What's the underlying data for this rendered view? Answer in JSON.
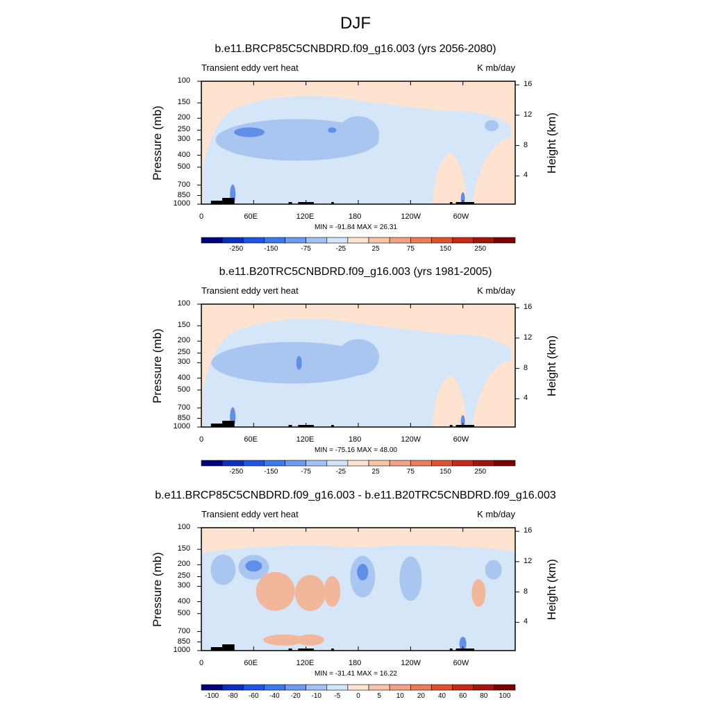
{
  "page_title": "DJF",
  "chart_data": [
    {
      "type": "heatmap",
      "title": "b.e11.BRCP85C5CNBDRD.f09_g16.003 (yrs 2056-2080)",
      "left_string": "Transient eddy vert heat",
      "right_string": "K mb/day",
      "ylabel": "Pressure (mb)",
      "ylabel_right": "Height (km)",
      "x_ticks": [
        "0",
        "60E",
        "120E",
        "180",
        "120W",
        "60W"
      ],
      "y_ticks": [
        "100",
        "150",
        "200",
        "250",
        "300",
        "400",
        "500",
        "700",
        "850",
        "1000"
      ],
      "y_ticks_right": [
        "4",
        "8",
        "12",
        "16"
      ],
      "xlim": [
        0,
        360
      ],
      "ylim": [
        1000,
        100
      ],
      "min_max_label": "MIN = -91.84  MAX =  26.31",
      "colorbar_levels": [
        "-250",
        "-150",
        "-75",
        "-25",
        "25",
        "75",
        "150",
        "250"
      ],
      "colors": {
        "upper": "#fde3d0",
        "body": "#d5e6f8",
        "core": "#a9c6f0",
        "deep": "#5f8fe6",
        "warm": "#f2b69b",
        "terrain": "#000000"
      }
    },
    {
      "type": "heatmap",
      "title": "b.e11.B20TRC5CNBDRD.f09_g16.003 (yrs 1981-2005)",
      "left_string": "Transient eddy vert heat",
      "right_string": "K mb/day",
      "ylabel": "Pressure (mb)",
      "ylabel_right": "Height (km)",
      "x_ticks": [
        "0",
        "60E",
        "120E",
        "180",
        "120W",
        "60W"
      ],
      "y_ticks": [
        "100",
        "150",
        "200",
        "250",
        "300",
        "400",
        "500",
        "700",
        "850",
        "1000"
      ],
      "y_ticks_right": [
        "4",
        "8",
        "12",
        "16"
      ],
      "xlim": [
        0,
        360
      ],
      "ylim": [
        1000,
        100
      ],
      "min_max_label": "MIN = -75.16  MAX =  48.00",
      "colorbar_levels": [
        "-250",
        "-150",
        "-75",
        "-25",
        "25",
        "75",
        "150",
        "250"
      ],
      "colors": {
        "upper": "#fde3d0",
        "body": "#d5e6f8",
        "core": "#a9c6f0",
        "deep": "#5f8fe6",
        "warm": "#f2b69b",
        "terrain": "#000000"
      }
    },
    {
      "type": "heatmap",
      "title": "b.e11.BRCP85C5CNBDRD.f09_g16.003 - b.e11.B20TRC5CNBDRD.f09_g16.003",
      "left_string": "Transient eddy vert heat",
      "right_string": "K mb/day",
      "ylabel": "Pressure (mb)",
      "ylabel_right": "Height (km)",
      "x_ticks": [
        "0",
        "60E",
        "120E",
        "180",
        "120W",
        "60W"
      ],
      "y_ticks": [
        "100",
        "150",
        "200",
        "250",
        "300",
        "400",
        "500",
        "700",
        "850",
        "1000"
      ],
      "y_ticks_right": [
        "4",
        "8",
        "12",
        "16"
      ],
      "xlim": [
        0,
        360
      ],
      "ylim": [
        1000,
        100
      ],
      "min_max_label": "MIN = -31.41  MAX =  16.22",
      "colorbar_levels": [
        "-100",
        "-80",
        "-60",
        "-40",
        "-20",
        "-10",
        "-5",
        "0",
        "5",
        "10",
        "20",
        "40",
        "60",
        "80",
        "100"
      ],
      "colors": {
        "upper": "#fde3d0",
        "body": "#d5e6f8",
        "core": "#a9c6f0",
        "deep": "#5f8fe6",
        "warm": "#f2b69b",
        "terrain": "#000000"
      }
    }
  ],
  "colorbar_colors": [
    "#00007f",
    "#0a2fbf",
    "#1e55e6",
    "#3b79ee",
    "#6b9bf0",
    "#a2c1f4",
    "#d2e4f9",
    "#fde4d2",
    "#f9c3a8",
    "#f3a183",
    "#ec7b57",
    "#e2512d",
    "#c72a16",
    "#a3150c",
    "#7d0000"
  ]
}
